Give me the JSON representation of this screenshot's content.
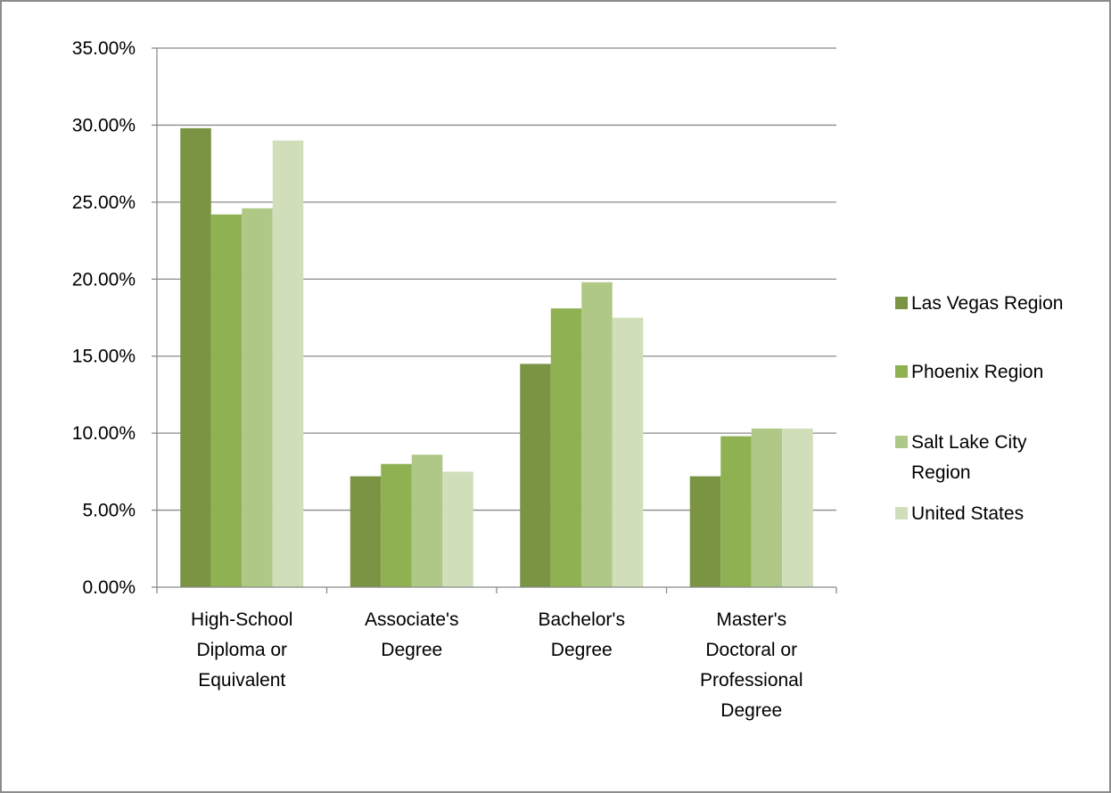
{
  "chart_data": {
    "type": "bar",
    "categories": [
      [
        "High-School",
        "Diploma or",
        "Equivalent"
      ],
      [
        "Associate's",
        "Degree"
      ],
      [
        "Bachelor's",
        "Degree"
      ],
      [
        "Master's",
        "Doctoral or",
        "Professional",
        "Degree"
      ]
    ],
    "series": [
      {
        "name": [
          "Las Vegas Region"
        ],
        "color": "#7a9443",
        "values": [
          0.298,
          0.072,
          0.145,
          0.072
        ]
      },
      {
        "name": [
          "Phoenix Region"
        ],
        "color": "#8fb151",
        "values": [
          0.242,
          0.08,
          0.181,
          0.098
        ]
      },
      {
        "name": [
          "Salt Lake City",
          "Region"
        ],
        "color": "#afc886",
        "values": [
          0.246,
          0.086,
          0.198,
          0.103
        ]
      },
      {
        "name": [
          "United States"
        ],
        "color": "#d0deb9",
        "values": [
          0.29,
          0.075,
          0.175,
          0.103
        ]
      }
    ],
    "ylim": [
      0,
      0.35
    ],
    "yticks": [
      "0.00%",
      "5.00%",
      "10.00%",
      "15.00%",
      "20.00%",
      "25.00%",
      "30.00%",
      "35.00%"
    ],
    "grid": true,
    "legend_position": "right"
  }
}
